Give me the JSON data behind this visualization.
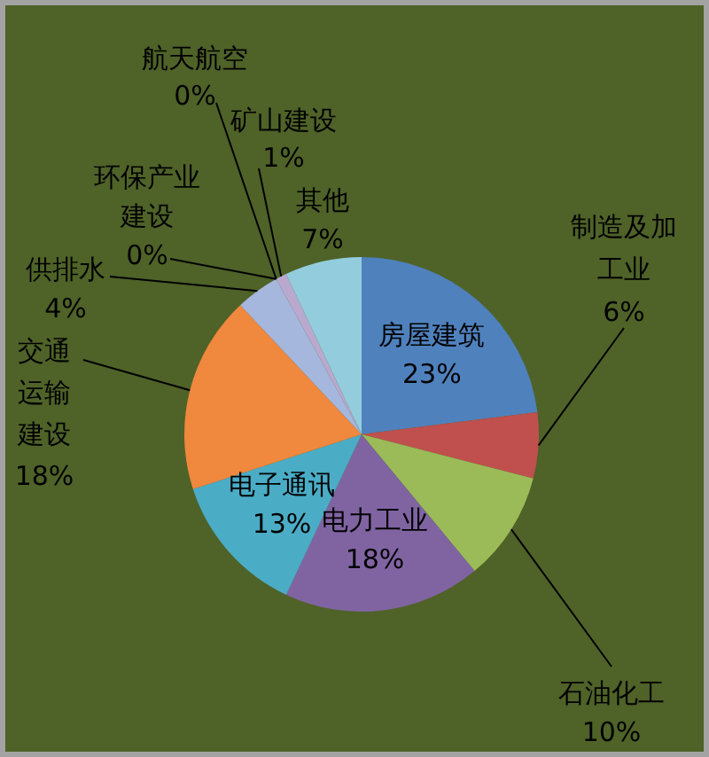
{
  "chart_data": {
    "type": "pie",
    "categories": [
      "房屋建筑",
      "制造及加工业",
      "石油化工",
      "电力工业",
      "电子通讯",
      "交通运输建设",
      "供排水",
      "环保产业建设",
      "航天航空",
      "矿山建设",
      "其他"
    ],
    "values": [
      23,
      6,
      10,
      18,
      13,
      18,
      4,
      0,
      0,
      1,
      7
    ],
    "value_labels": [
      "23%",
      "6%",
      "10%",
      "18%",
      "13%",
      "18%",
      "4%",
      "0%",
      "0%",
      "1%",
      "7%"
    ],
    "colors": [
      "#4f81bd",
      "#c0504d",
      "#9bbb59",
      "#8064a2",
      "#4bacc6",
      "#f0883e",
      "#a5b7dc",
      "#e3a3a1",
      "#c3d69b",
      "#b9a9cf",
      "#93cddd"
    ]
  }
}
